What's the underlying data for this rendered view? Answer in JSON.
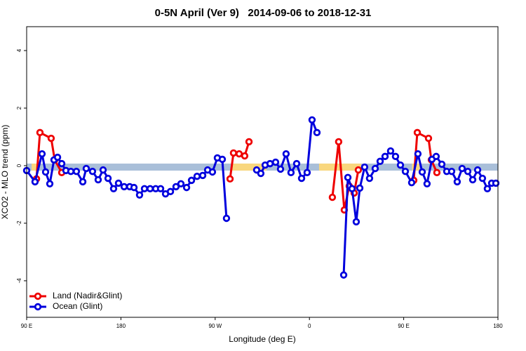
{
  "chart_data": {
    "type": "line",
    "title": "0-5N April (Ver 9)   2014-09-06 to 2018-12-31",
    "xlabel": "Longitude (deg E)",
    "ylabel": "XCO2 - MLO trend (ppm)",
    "xlim": [
      90,
      540
    ],
    "ylim": [
      -5.27,
      4.83
    ],
    "xticks": [
      {
        "value": 90,
        "label": "90 E"
      },
      {
        "value": 180,
        "label": "180"
      },
      {
        "value": 270,
        "label": "90 W"
      },
      {
        "value": 360,
        "label": "0"
      },
      {
        "value": 450,
        "label": "90 E"
      },
      {
        "value": 540,
        "label": "180"
      }
    ],
    "yticks": [
      4,
      2,
      0,
      -2,
      -4
    ],
    "legend": "bottom-left",
    "band": {
      "value": -0.05,
      "color": "#a9bfd9",
      "land_color": "#f9d77e",
      "land_ranges": [
        [
          94.7,
          99.4
        ],
        [
          285.5,
          319
        ],
        [
          369.2,
          409.4
        ],
        [
          458,
          465
        ]
      ]
    },
    "series": [
      {
        "name": "Land (Nadir&Glint)",
        "color": "#ee0000",
        "x": [
          99.4,
          102.7,
          113.4,
          116.8,
          123.5,
          null,
          284.2,
          287.5,
          292.9,
          298.2,
          302.3,
          null,
          381.9,
          387.9,
          393.3,
          398.0,
          402.7,
          406.7,
          null,
          459.6,
          463.0,
          473.7,
          476.4,
          481.7
        ],
        "values": [
          -0.46,
          1.15,
          0.95,
          0.2,
          -0.24,
          null,
          -0.46,
          0.44,
          0.41,
          0.34,
          0.83,
          null,
          -1.1,
          0.83,
          -1.54,
          -0.71,
          -0.95,
          -0.15,
          null,
          -0.51,
          1.15,
          0.95,
          0.2,
          -0.24
        ]
      },
      {
        "name": "Ocean (Glint)",
        "color": "#0000dd",
        "x": [
          90.0,
          98.0,
          104.7,
          108.1,
          112.1,
          116.1,
          119.5,
          123.5,
          127.5,
          132.2,
          137.5,
          143.6,
          146.9,
          152.9,
          158.3,
          163.0,
          167.7,
          173.0,
          177.7,
          183.1,
          188.4,
          192.5,
          197.8,
          202.5,
          207.9,
          213.2,
          217.9,
          222.6,
          227.3,
          232.6,
          237.3,
          242.7,
          247.4,
          252.7,
          258.1,
          262.8,
          267.4,
          272.1,
          276.8,
          280.8,
          null,
          309.6,
          313.6,
          317.7,
          322.4,
          327.7,
          332.4,
          337.7,
          342.4,
          347.8,
          352.5,
          357.8,
          362.5,
          367.2,
          null,
          392.7,
          396.7,
          400.7,
          404.7,
          408.1,
          412.7,
          417.4,
          422.8,
          427.5,
          432.2,
          437.5,
          442.2,
          446.9,
          451.6,
          457.6,
          463.6,
          467.7,
          472.3,
          477.0,
          481.0,
          486.4,
          491.1,
          495.8,
          501.1,
          505.8,
          511.2,
          515.9,
          520.6,
          525.2,
          529.9,
          534.0,
          538.0
        ],
        "values": [
          -0.17,
          -0.56,
          0.41,
          -0.22,
          -0.63,
          0.2,
          0.29,
          0.07,
          -0.17,
          -0.2,
          -0.2,
          -0.56,
          -0.1,
          -0.2,
          -0.49,
          -0.15,
          -0.44,
          -0.8,
          -0.61,
          -0.73,
          -0.73,
          -0.76,
          -1.02,
          -0.8,
          -0.8,
          -0.8,
          -0.8,
          -0.98,
          -0.9,
          -0.73,
          -0.63,
          -0.76,
          -0.51,
          -0.37,
          -0.34,
          -0.15,
          -0.22,
          0.27,
          0.22,
          -1.83,
          null,
          -0.15,
          -0.27,
          0.02,
          0.07,
          0.12,
          -0.12,
          0.41,
          -0.24,
          0.07,
          -0.44,
          -0.24,
          1.59,
          1.15,
          null,
          -3.8,
          -0.41,
          -0.8,
          -1.95,
          -0.78,
          -0.05,
          -0.44,
          -0.1,
          0.15,
          0.32,
          0.51,
          0.32,
          0.02,
          -0.2,
          -0.59,
          0.41,
          -0.22,
          -0.63,
          0.22,
          0.32,
          0.05,
          -0.2,
          -0.2,
          -0.56,
          -0.1,
          -0.2,
          -0.49,
          -0.15,
          -0.44,
          -0.8,
          -0.61,
          -0.61
        ]
      }
    ]
  }
}
